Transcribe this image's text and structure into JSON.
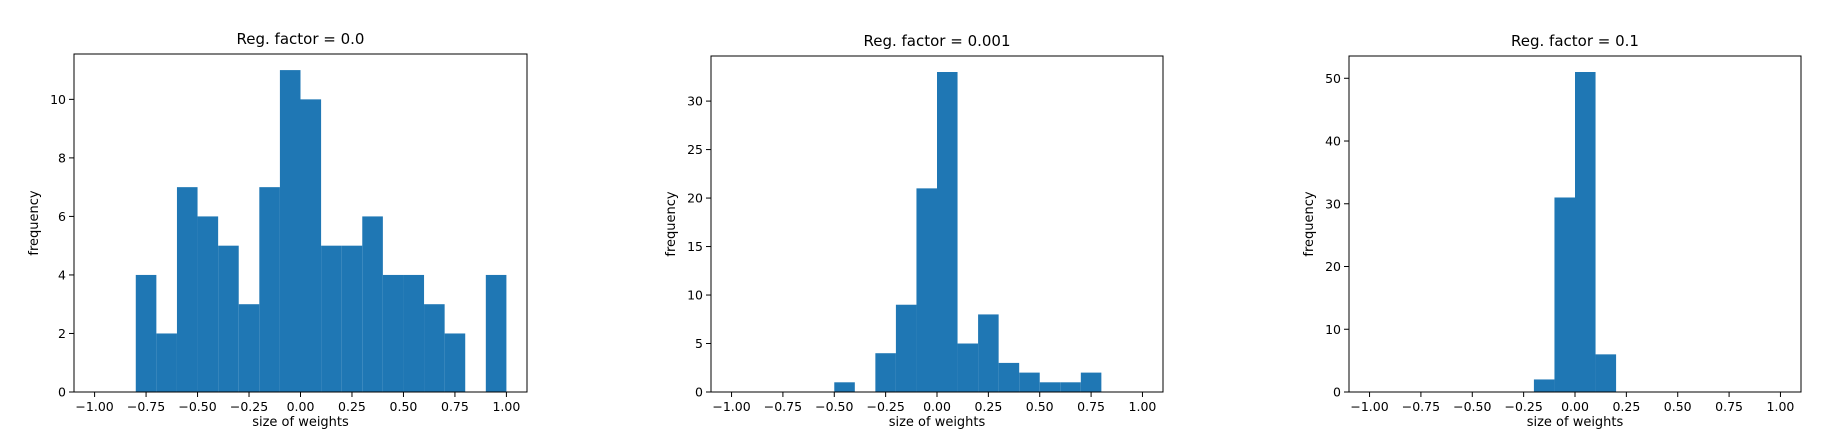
{
  "chart_data": [
    {
      "type": "bar",
      "title": "Reg. factor = 0.0",
      "xlabel": "size of weights",
      "ylabel": "frequency",
      "xlim": [
        -1.1,
        1.1
      ],
      "ylim": [
        0,
        11.55
      ],
      "xticks": [
        -1.0,
        -0.75,
        -0.5,
        -0.25,
        0.0,
        0.25,
        0.5,
        0.75,
        1.0
      ],
      "xtick_labels": [
        "−1.00",
        "−0.75",
        "−0.50",
        "−0.25",
        "0.00",
        "0.25",
        "0.50",
        "0.75",
        "1.00"
      ],
      "yticks": [
        0,
        2,
        4,
        6,
        8,
        10
      ],
      "ytick_labels": [
        "0",
        "2",
        "4",
        "6",
        "8",
        "10"
      ],
      "bin_edges": [
        -0.8,
        -0.7,
        -0.6,
        -0.5,
        -0.4,
        -0.3,
        -0.2,
        -0.1,
        0.0,
        0.1,
        0.2,
        0.3,
        0.4,
        0.5,
        0.6,
        0.7,
        0.8,
        0.9,
        1.0
      ],
      "values": [
        4,
        2,
        7,
        6,
        5,
        3,
        7,
        11,
        10,
        5,
        5,
        6,
        4,
        4,
        3,
        2,
        0,
        4
      ],
      "color": "#1f77b4"
    },
    {
      "type": "bar",
      "title": "Reg. factor = 0.001",
      "xlabel": "size of weights",
      "ylabel": "frequency",
      "xlim": [
        -1.1,
        1.1
      ],
      "ylim": [
        0,
        34.65
      ],
      "xticks": [
        -1.0,
        -0.75,
        -0.5,
        -0.25,
        0.0,
        0.25,
        0.5,
        0.75,
        1.0
      ],
      "xtick_labels": [
        "−1.00",
        "−0.75",
        "−0.50",
        "−0.25",
        "0.00",
        "0.25",
        "0.50",
        "0.75",
        "1.00"
      ],
      "yticks": [
        0,
        5,
        10,
        15,
        20,
        25,
        30
      ],
      "ytick_labels": [
        "0",
        "5",
        "10",
        "15",
        "20",
        "25",
        "30"
      ],
      "bin_edges": [
        -0.5,
        -0.4,
        -0.3,
        -0.2,
        -0.1,
        0.0,
        0.1,
        0.2,
        0.3,
        0.4,
        0.5,
        0.6,
        0.7,
        0.8
      ],
      "values": [
        1,
        0,
        4,
        9,
        21,
        33,
        5,
        8,
        3,
        2,
        1,
        1,
        2
      ],
      "color": "#1f77b4"
    },
    {
      "type": "bar",
      "title": "Reg. factor = 0.1",
      "xlabel": "size of weights",
      "ylabel": "frequency",
      "xlim": [
        -1.1,
        1.1
      ],
      "ylim": [
        0,
        53.55
      ],
      "xticks": [
        -1.0,
        -0.75,
        -0.5,
        -0.25,
        0.0,
        0.25,
        0.5,
        0.75,
        1.0
      ],
      "xtick_labels": [
        "−1.00",
        "−0.75",
        "−0.50",
        "−0.25",
        "0.00",
        "0.25",
        "0.50",
        "0.75",
        "1.00"
      ],
      "yticks": [
        0,
        10,
        20,
        30,
        40,
        50
      ],
      "ytick_labels": [
        "0",
        "10",
        "20",
        "30",
        "40",
        "50"
      ],
      "bin_edges": [
        -0.1,
        0.0,
        0.1,
        0.2
      ],
      "values": [
        31,
        51,
        6
      ],
      "extra_bins": [
        {
          "x0": -0.2,
          "x1": -0.1,
          "value": 2
        }
      ],
      "color": "#1f77b4"
    }
  ]
}
